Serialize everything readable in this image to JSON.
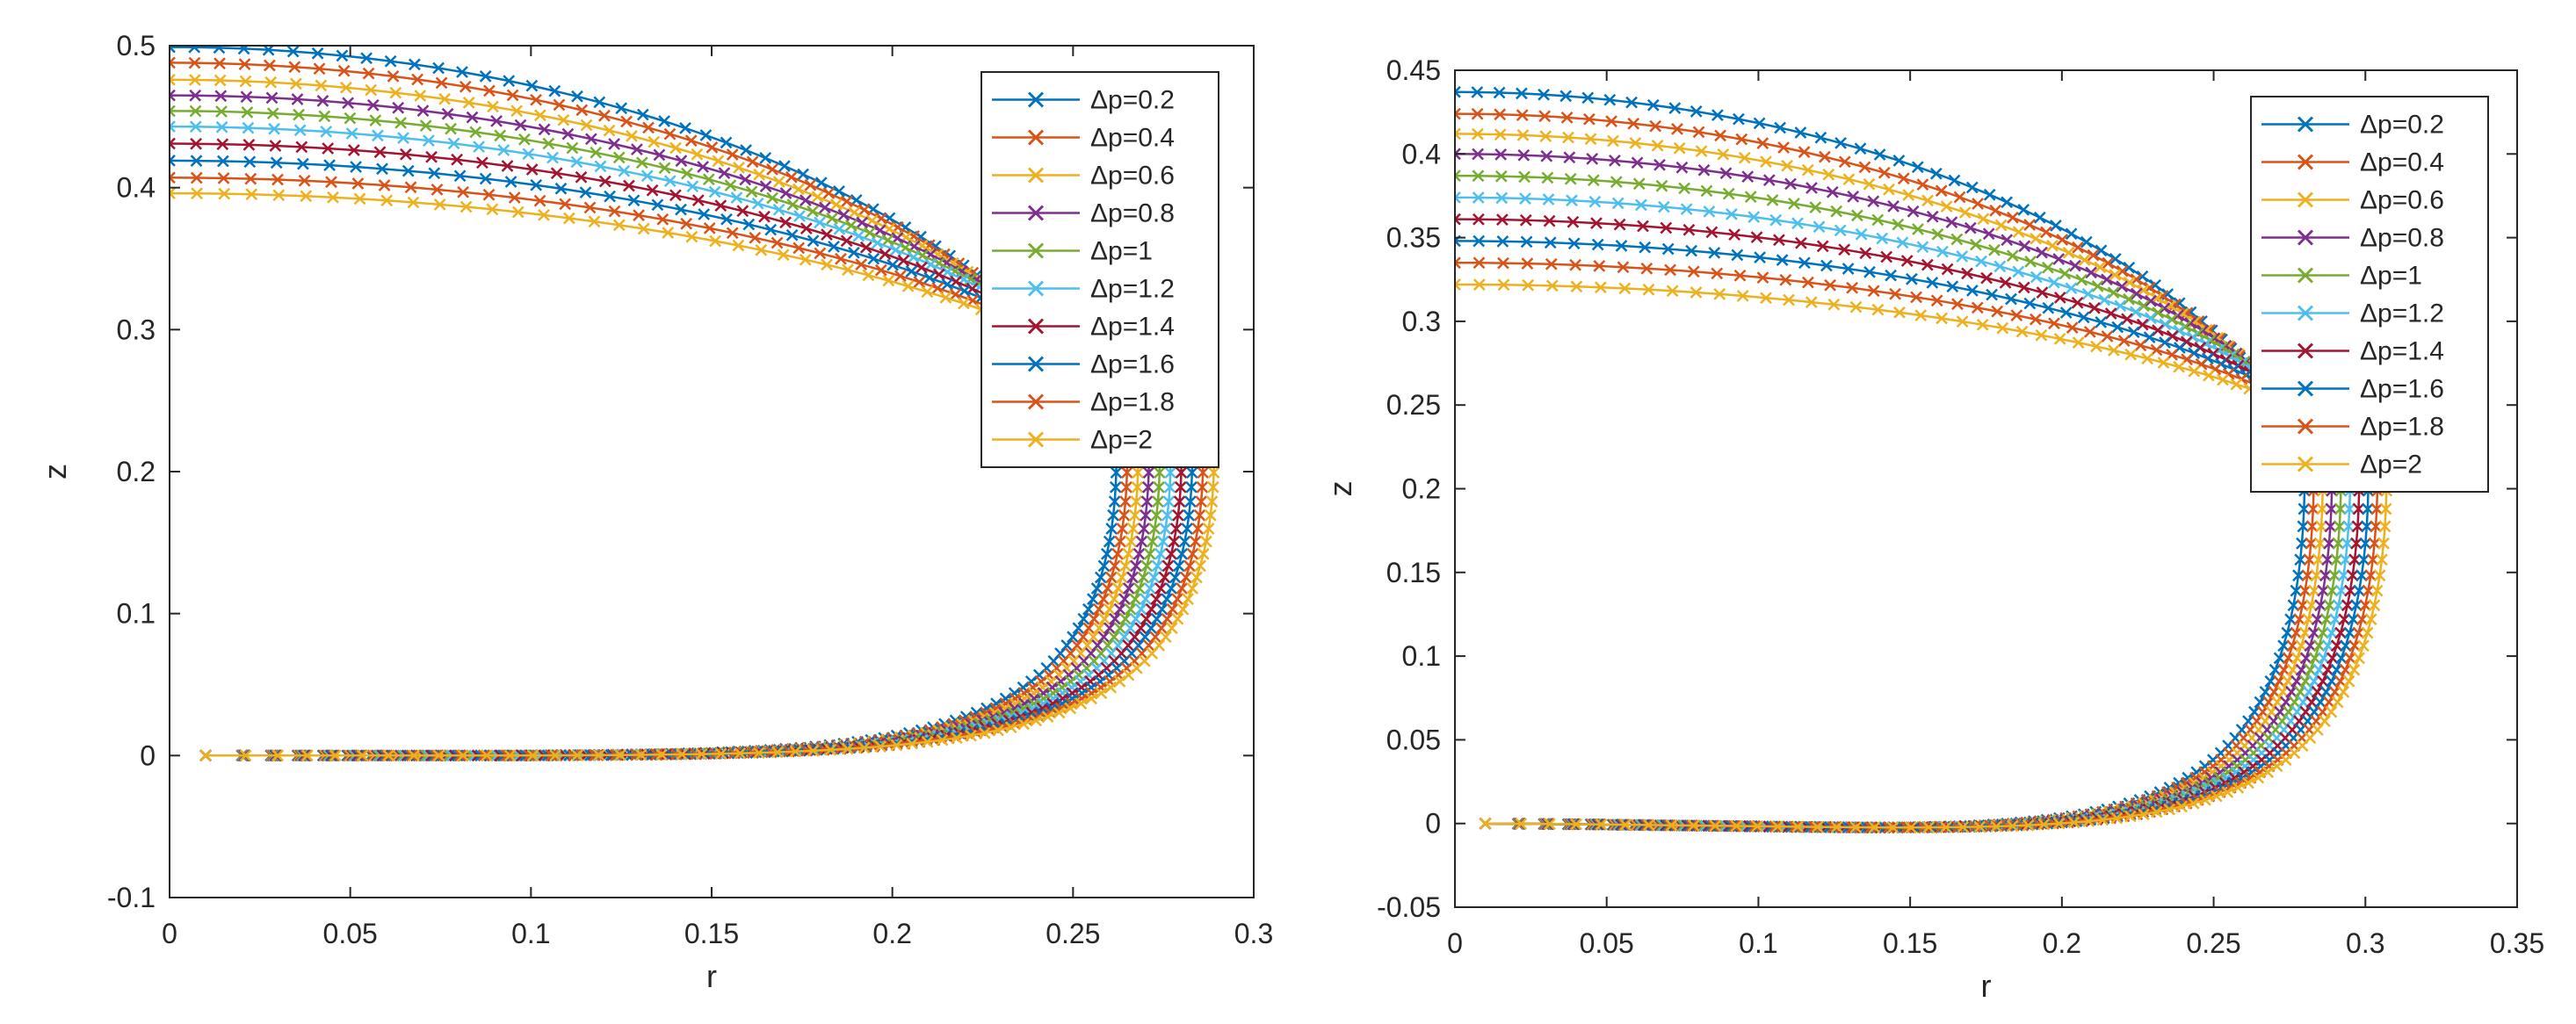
{
  "chart_data": [
    {
      "type": "line",
      "title": "",
      "xlabel": "r",
      "ylabel": "z",
      "xlim": [
        0,
        0.3
      ],
      "ylim": [
        -0.1,
        0.5
      ],
      "xticks": [
        0,
        0.05,
        0.1,
        0.15,
        0.2,
        0.25,
        0.3
      ],
      "xtick_labels": [
        "0",
        "0.05",
        "0.1",
        "0.15",
        "0.2",
        "0.25",
        "0.3"
      ],
      "yticks": [
        -0.1,
        0,
        0.1,
        0.2,
        0.3,
        0.4,
        0.5
      ],
      "ytick_labels": [
        "-0.1",
        "0",
        "0.1",
        "0.2",
        "0.3",
        "0.4",
        "0.5"
      ],
      "legend_position": "top-right",
      "marker": "x",
      "curve_shape": {
        "r_start": 0.01,
        "z_start": 0.0,
        "min_dip": 0.0
      },
      "series": [
        {
          "name": "Δp=0.2",
          "color": "#0072BD",
          "z_top": 0.499,
          "r_max": 0.262,
          "z_at_rmax": 0.21
        },
        {
          "name": "Δp=0.4",
          "color": "#D95319",
          "z_top": 0.488,
          "r_max": 0.265,
          "z_at_rmax": 0.21
        },
        {
          "name": "Δp=0.6",
          "color": "#EDB120",
          "z_top": 0.476,
          "r_max": 0.268,
          "z_at_rmax": 0.21
        },
        {
          "name": "Δp=0.8",
          "color": "#7E2F8E",
          "z_top": 0.465,
          "r_max": 0.271,
          "z_at_rmax": 0.21
        },
        {
          "name": "Δp=1",
          "color": "#77AC30",
          "z_top": 0.454,
          "r_max": 0.274,
          "z_at_rmax": 0.21
        },
        {
          "name": "Δp=1.2",
          "color": "#4DBEEE",
          "z_top": 0.443,
          "r_max": 0.277,
          "z_at_rmax": 0.21
        },
        {
          "name": "Δp=1.4",
          "color": "#A2142F",
          "z_top": 0.431,
          "r_max": 0.28,
          "z_at_rmax": 0.21
        },
        {
          "name": "Δp=1.6",
          "color": "#0072BD",
          "z_top": 0.419,
          "r_max": 0.283,
          "z_at_rmax": 0.21
        },
        {
          "name": "Δp=1.8",
          "color": "#D95319",
          "z_top": 0.407,
          "r_max": 0.286,
          "z_at_rmax": 0.21
        },
        {
          "name": "Δp=2",
          "color": "#EDB120",
          "z_top": 0.396,
          "r_max": 0.289,
          "z_at_rmax": 0.21
        }
      ]
    },
    {
      "type": "line",
      "title": "",
      "xlabel": "r",
      "ylabel": "z",
      "xlim": [
        0,
        0.35
      ],
      "ylim": [
        -0.05,
        0.45
      ],
      "xticks": [
        0,
        0.05,
        0.1,
        0.15,
        0.2,
        0.25,
        0.3,
        0.35
      ],
      "xtick_labels": [
        "0",
        "0.05",
        "0.1",
        "0.15",
        "0.2",
        "0.25",
        "0.3",
        "0.35"
      ],
      "yticks": [
        -0.05,
        0,
        0.05,
        0.1,
        0.15,
        0.2,
        0.25,
        0.3,
        0.35,
        0.4,
        0.45
      ],
      "ytick_labels": [
        "-0.05",
        "0",
        "0.05",
        "0.1",
        "0.15",
        "0.2",
        "0.25",
        "0.3",
        "0.35",
        "0.4",
        "0.45"
      ],
      "legend_position": "top-right",
      "marker": "x",
      "curve_shape": {
        "r_start": 0.01,
        "z_start": 0.0,
        "min_dip": 0.008
      },
      "series": [
        {
          "name": "Δp=0.2",
          "color": "#0072BD",
          "z_top": 0.437,
          "r_max": 0.28,
          "z_at_rmax": 0.21
        },
        {
          "name": "Δp=0.4",
          "color": "#D95319",
          "z_top": 0.424,
          "r_max": 0.283,
          "z_at_rmax": 0.21
        },
        {
          "name": "Δp=0.6",
          "color": "#EDB120",
          "z_top": 0.412,
          "r_max": 0.286,
          "z_at_rmax": 0.21
        },
        {
          "name": "Δp=0.8",
          "color": "#7E2F8E",
          "z_top": 0.4,
          "r_max": 0.289,
          "z_at_rmax": 0.21
        },
        {
          "name": "Δp=1",
          "color": "#77AC30",
          "z_top": 0.387,
          "r_max": 0.292,
          "z_at_rmax": 0.21
        },
        {
          "name": "Δp=1.2",
          "color": "#4DBEEE",
          "z_top": 0.374,
          "r_max": 0.295,
          "z_at_rmax": 0.21
        },
        {
          "name": "Δp=1.4",
          "color": "#A2142F",
          "z_top": 0.361,
          "r_max": 0.298,
          "z_at_rmax": 0.21
        },
        {
          "name": "Δp=1.6",
          "color": "#0072BD",
          "z_top": 0.348,
          "r_max": 0.301,
          "z_at_rmax": 0.21
        },
        {
          "name": "Δp=1.8",
          "color": "#D95319",
          "z_top": 0.335,
          "r_max": 0.304,
          "z_at_rmax": 0.21
        },
        {
          "name": "Δp=2",
          "color": "#EDB120",
          "z_top": 0.322,
          "r_max": 0.307,
          "z_at_rmax": 0.21
        }
      ]
    }
  ]
}
